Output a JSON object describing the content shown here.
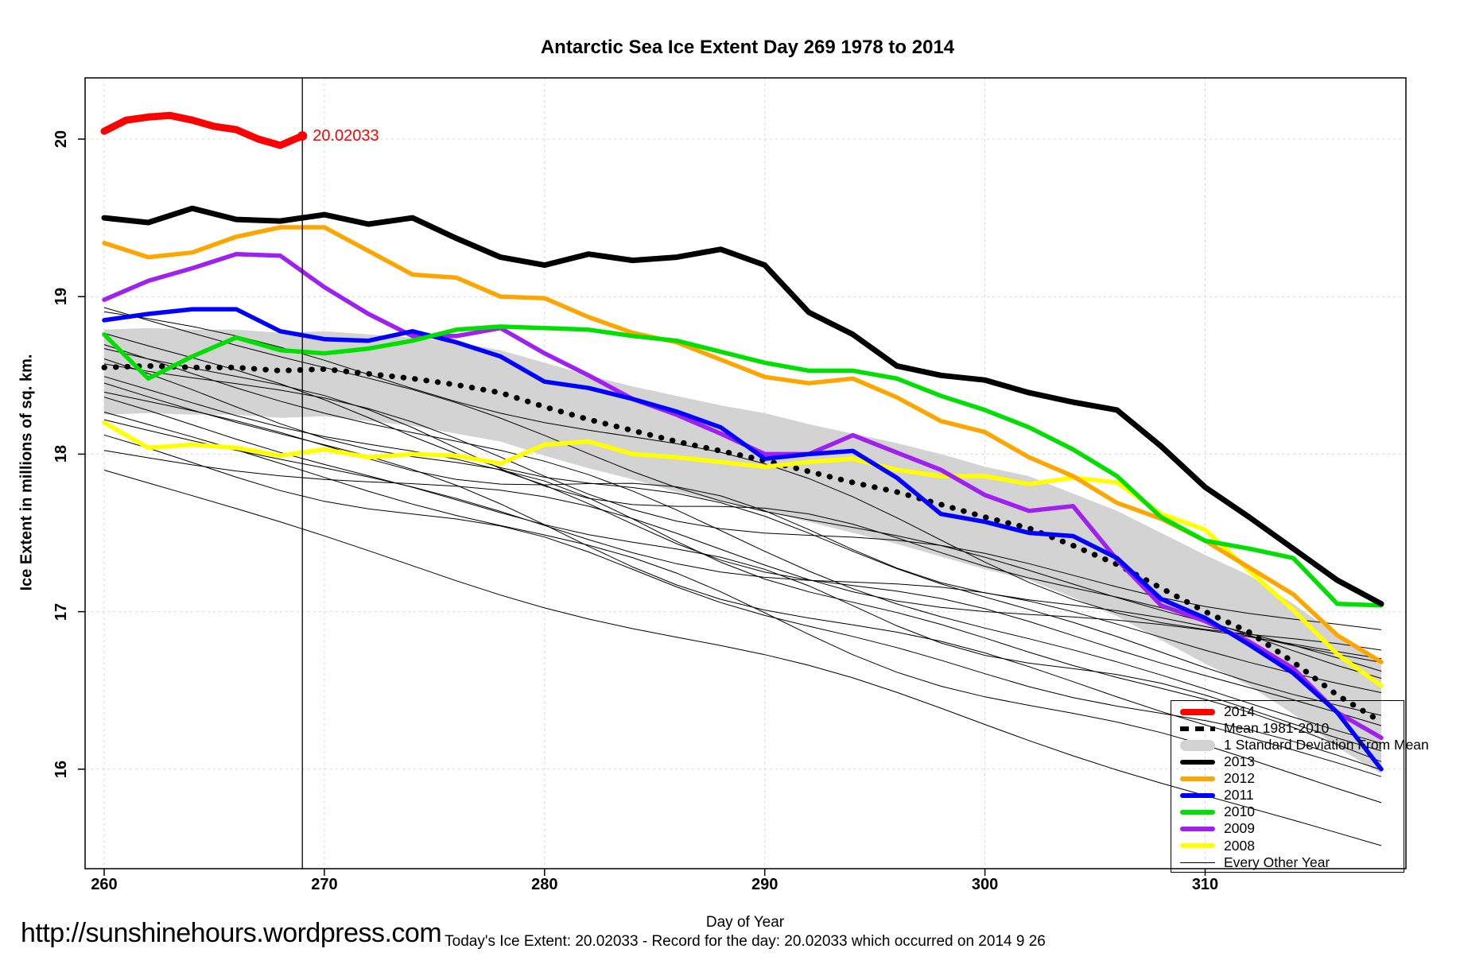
{
  "header": {
    "title": "Antarctic Sea Ice Extent Day 269 1978 to 2014"
  },
  "footer": {
    "url": "http://sunshinehours.wordpress.com",
    "caption": "Today's Ice Extent: 20.02033  - Record for the day: 20.02033 which occurred on 2014 9 26"
  },
  "annotation": {
    "label": "20.02033",
    "day": 269,
    "value": 20.02,
    "color": "#FF0000"
  },
  "marker": {
    "day": 269
  },
  "legend": {
    "items": [
      {
        "label": "2014",
        "style": "line",
        "color": "#FF0000",
        "thickness": 8
      },
      {
        "label": "Mean 1981-2010",
        "style": "dashed",
        "color": "#000000",
        "thickness": 6
      },
      {
        "label": "1 Standard Deviation From Mean",
        "style": "band",
        "color": "#D3D3D3",
        "thickness": 14
      },
      {
        "label": "2013",
        "style": "line",
        "color": "#000000",
        "thickness": 6
      },
      {
        "label": "2012",
        "style": "line",
        "color": "#FFA500",
        "thickness": 6
      },
      {
        "label": "2011",
        "style": "line",
        "color": "#0000FF",
        "thickness": 6
      },
      {
        "label": "2010",
        "style": "line",
        "color": "#00E000",
        "thickness": 6
      },
      {
        "label": "2009",
        "style": "line",
        "color": "#A020F0",
        "thickness": 6
      },
      {
        "label": "2008",
        "style": "line",
        "color": "#FFFF00",
        "thickness": 6
      },
      {
        "label": "Every Other Year",
        "style": "thin",
        "color": "#000000",
        "thickness": 1.5
      }
    ]
  },
  "chart_data": {
    "type": "line",
    "title": "Antarctic Sea Ice Extent Day 269 1978 to 2014",
    "xlabel": "Day of Year",
    "ylabel": "Ice Extent in millions of sq. km.",
    "x_ticks": [
      260,
      270,
      280,
      290,
      300,
      310
    ],
    "y_ticks": [
      16,
      17,
      18,
      19,
      20
    ],
    "xlim": [
      259.1,
      319.1
    ],
    "ylim": [
      15.37,
      20.39
    ],
    "grid": "dashed-lightgray",
    "legend_position": "inside-bottom-right",
    "grid_color": "#D8D8D8",
    "x": [
      260,
      262,
      264,
      266,
      268,
      270,
      272,
      274,
      276,
      278,
      280,
      282,
      284,
      286,
      288,
      290,
      292,
      294,
      296,
      298,
      300,
      302,
      304,
      306,
      308,
      310,
      312,
      314,
      316,
      318
    ],
    "band": {
      "name": "1 Standard Deviation From Mean",
      "color": "#D3D3D3",
      "upper": [
        18.79,
        18.8,
        18.79,
        18.79,
        18.77,
        18.78,
        18.76,
        18.74,
        18.71,
        18.66,
        18.58,
        18.5,
        18.43,
        18.37,
        18.31,
        18.26,
        18.19,
        18.13,
        18.07,
        18.0,
        17.92,
        17.86,
        17.75,
        17.64,
        17.5,
        17.36,
        17.23,
        17.05,
        16.85,
        16.68
      ],
      "lower": [
        18.25,
        18.26,
        18.25,
        18.25,
        18.23,
        18.24,
        18.21,
        18.18,
        18.13,
        18.08,
        17.99,
        17.91,
        17.84,
        17.76,
        17.7,
        17.64,
        17.57,
        17.5,
        17.43,
        17.35,
        17.27,
        17.2,
        17.09,
        16.97,
        16.82,
        16.67,
        16.53,
        16.35,
        16.14,
        15.97
      ]
    },
    "series": [
      {
        "name": "Mean 1981-2010",
        "color": "#000000",
        "width": 7,
        "dash": "dotted",
        "values": [
          18.55,
          18.56,
          18.55,
          18.55,
          18.53,
          18.54,
          18.51,
          18.48,
          18.44,
          18.39,
          18.3,
          18.22,
          18.15,
          18.08,
          18.02,
          17.96,
          17.89,
          17.82,
          17.76,
          17.68,
          17.6,
          17.53,
          17.42,
          17.3,
          17.15,
          17.0,
          16.87,
          16.68,
          16.47,
          16.3
        ]
      },
      {
        "name": "2008",
        "color": "#FFFF00",
        "width": 5.5,
        "values": [
          18.2,
          18.04,
          18.06,
          18.04,
          17.99,
          18.03,
          17.98,
          18.0,
          17.99,
          17.94,
          18.06,
          18.08,
          18.0,
          17.98,
          17.95,
          17.92,
          17.95,
          17.97,
          17.9,
          17.86,
          17.86,
          17.81,
          17.85,
          17.82,
          17.62,
          17.52,
          17.26,
          17.01,
          16.73,
          16.53
        ]
      },
      {
        "name": "2009",
        "color": "#A020F0",
        "width": 5.5,
        "values": [
          18.98,
          19.1,
          19.18,
          19.27,
          19.26,
          19.06,
          18.89,
          18.75,
          18.75,
          18.8,
          18.64,
          18.5,
          18.35,
          18.25,
          18.13,
          18.0,
          18.0,
          18.12,
          18.01,
          17.9,
          17.74,
          17.64,
          17.67,
          17.33,
          17.04,
          16.94,
          16.81,
          16.64,
          16.36,
          16.2
        ]
      },
      {
        "name": "2011",
        "color": "#0000FF",
        "width": 5.5,
        "values": [
          18.85,
          18.89,
          18.92,
          18.92,
          18.78,
          18.73,
          18.72,
          18.78,
          18.71,
          18.62,
          18.46,
          18.42,
          18.35,
          18.27,
          18.17,
          17.97,
          18.0,
          18.02,
          17.85,
          17.62,
          17.57,
          17.5,
          17.48,
          17.34,
          17.08,
          16.96,
          16.79,
          16.61,
          16.36,
          16.0
        ]
      },
      {
        "name": "2012",
        "color": "#FFA500",
        "width": 5.5,
        "values": [
          19.34,
          19.25,
          19.28,
          19.38,
          19.44,
          19.44,
          19.29,
          19.14,
          19.12,
          19.0,
          18.99,
          18.87,
          18.77,
          18.71,
          18.6,
          18.49,
          18.45,
          18.48,
          18.36,
          18.21,
          18.14,
          17.98,
          17.86,
          17.69,
          17.59,
          17.45,
          17.28,
          17.11,
          16.85,
          16.68
        ]
      },
      {
        "name": "2010",
        "color": "#00E000",
        "width": 5.5,
        "values": [
          18.76,
          18.48,
          18.62,
          18.74,
          18.66,
          18.64,
          18.67,
          18.72,
          18.79,
          18.81,
          18.8,
          18.79,
          18.75,
          18.72,
          18.65,
          18.58,
          18.53,
          18.53,
          18.48,
          18.37,
          18.28,
          18.17,
          18.03,
          17.86,
          17.6,
          17.45,
          17.4,
          17.34,
          17.05,
          17.04
        ]
      },
      {
        "name": "2013",
        "color": "#000000",
        "width": 7,
        "values": [
          19.5,
          19.47,
          19.56,
          19.49,
          19.48,
          19.52,
          19.46,
          19.5,
          19.37,
          19.25,
          19.2,
          19.27,
          19.23,
          19.25,
          19.3,
          19.2,
          18.9,
          18.76,
          18.56,
          18.5,
          18.47,
          18.39,
          18.33,
          18.28,
          18.05,
          17.79,
          17.6,
          17.4,
          17.2,
          17.05
        ]
      },
      {
        "name": "2014",
        "color": "#FF0000",
        "width": 9,
        "x": [
          260,
          261,
          262,
          263,
          264,
          265,
          266,
          267,
          268,
          269
        ],
        "values": [
          20.05,
          20.12,
          20.14,
          20.15,
          20.12,
          20.08,
          20.06,
          20.0,
          19.96,
          20.02
        ]
      }
    ],
    "every_other_year": {
      "name": "Every Other Year",
      "color": "#000000",
      "width": 1,
      "lines": [
        {
          "s": 18.92,
          "e": 16.6,
          "a": 0.1,
          "f1": 1.3,
          "f2": 2.7,
          "p1": 0.1,
          "p2": 0.5
        },
        {
          "s": 18.85,
          "e": 16.78,
          "a": 0.32,
          "f1": 0.8,
          "f2": 1.9,
          "p1": 0.05,
          "p2": 0.2
        },
        {
          "s": 18.76,
          "e": 16.35,
          "a": 0.12,
          "f1": 1.7,
          "f2": 3.1,
          "p1": 0.3,
          "p2": 0.8
        },
        {
          "s": 18.7,
          "e": 16.18,
          "a": 0.14,
          "f1": 1.1,
          "f2": 2.3,
          "p1": 0.9,
          "p2": 0.4
        },
        {
          "s": 18.66,
          "e": 16.62,
          "a": 0.18,
          "f1": 1.5,
          "f2": 2.9,
          "p1": 0.2,
          "p2": 0.7
        },
        {
          "s": 18.6,
          "e": 16.05,
          "a": 0.12,
          "f1": 2.0,
          "f2": 3.3,
          "p1": 0.55,
          "p2": 0.15
        },
        {
          "s": 18.56,
          "e": 16.88,
          "a": 0.26,
          "f1": 0.7,
          "f2": 2.1,
          "p1": 0.35,
          "p2": 0.85
        },
        {
          "s": 18.5,
          "e": 16.28,
          "a": 0.11,
          "f1": 1.9,
          "f2": 3.0,
          "p1": 0.75,
          "p2": 0.3
        },
        {
          "s": 18.44,
          "e": 15.92,
          "a": 0.15,
          "f1": 1.2,
          "f2": 2.5,
          "p1": 0.15,
          "p2": 0.6
        },
        {
          "s": 18.4,
          "e": 16.68,
          "a": 0.17,
          "f1": 1.6,
          "f2": 2.8,
          "p1": 0.5,
          "p2": 0.95
        },
        {
          "s": 18.34,
          "e": 16.12,
          "a": 0.1,
          "f1": 2.2,
          "f2": 3.4,
          "p1": 0.25,
          "p2": 0.45
        },
        {
          "s": 18.28,
          "e": 15.78,
          "a": 0.13,
          "f1": 1.4,
          "f2": 2.6,
          "p1": 0.8,
          "p2": 0.1
        },
        {
          "s": 18.22,
          "e": 16.48,
          "a": 0.16,
          "f1": 1.0,
          "f2": 2.2,
          "p1": 0.4,
          "p2": 0.7
        },
        {
          "s": 18.12,
          "e": 15.98,
          "a": 0.11,
          "f1": 1.8,
          "f2": 3.2,
          "p1": 0.6,
          "p2": 0.25
        },
        {
          "s": 18.02,
          "e": 16.72,
          "a": 0.2,
          "f1": 0.9,
          "f2": 2.0,
          "p1": 0.05,
          "p2": 0.55
        },
        {
          "s": 17.9,
          "e": 15.52,
          "a": 0.08,
          "f1": 1.3,
          "f2": 2.4,
          "p1": 0.45,
          "p2": 0.9
        }
      ]
    }
  }
}
